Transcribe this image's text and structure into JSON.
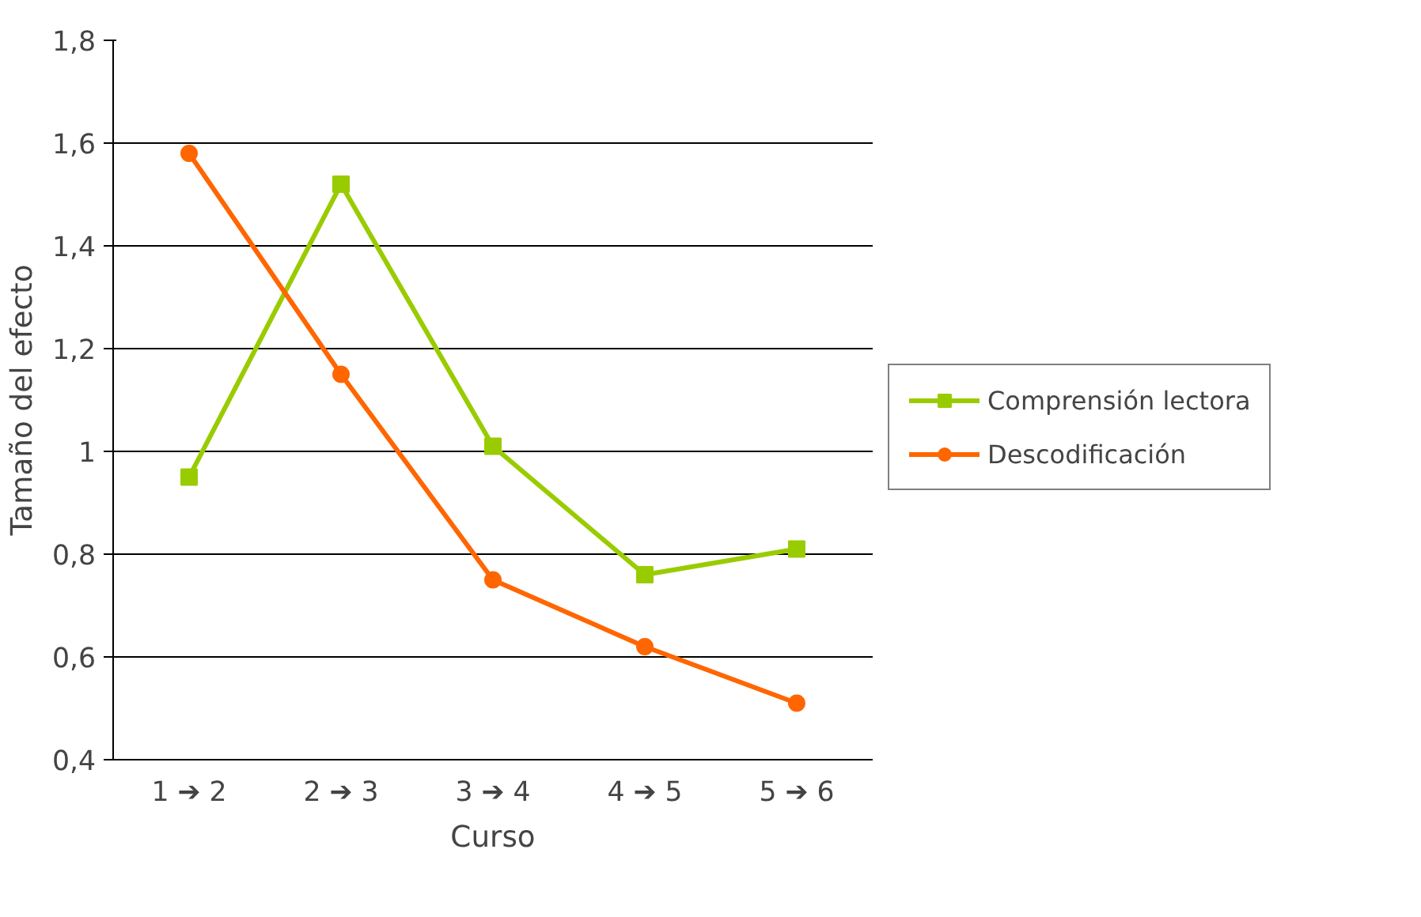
{
  "chart_data": {
    "type": "line",
    "xlabel": "Curso",
    "ylabel": "Tamaño del efecto",
    "categories": [
      "1 ➔ 2",
      "2 ➔ 3",
      "3 ➔ 4",
      "4 ➔ 5",
      "5 ➔ 6"
    ],
    "series": [
      {
        "name": "Comprensión lectora",
        "color": "#99cc00",
        "marker": "square",
        "values": [
          0.95,
          1.52,
          1.01,
          0.76,
          0.81
        ]
      },
      {
        "name": "Descodificación",
        "color": "#ff6600",
        "marker": "circle",
        "values": [
          1.58,
          1.15,
          0.75,
          0.62,
          0.51
        ]
      }
    ],
    "ylim": [
      0.4,
      1.8
    ],
    "yticks": [
      {
        "value": 0.4,
        "label": "0,4"
      },
      {
        "value": 0.6,
        "label": "0,6"
      },
      {
        "value": 0.8,
        "label": "0,8"
      },
      {
        "value": 1,
        "label": "1"
      },
      {
        "value": 1.2,
        "label": "1,2"
      },
      {
        "value": 1.4,
        "label": "1,4"
      },
      {
        "value": 1.6,
        "label": "1,6"
      },
      {
        "value": 1.8,
        "label": "1,8"
      }
    ],
    "grid": "y",
    "legend": "right",
    "line_style": "solid"
  }
}
